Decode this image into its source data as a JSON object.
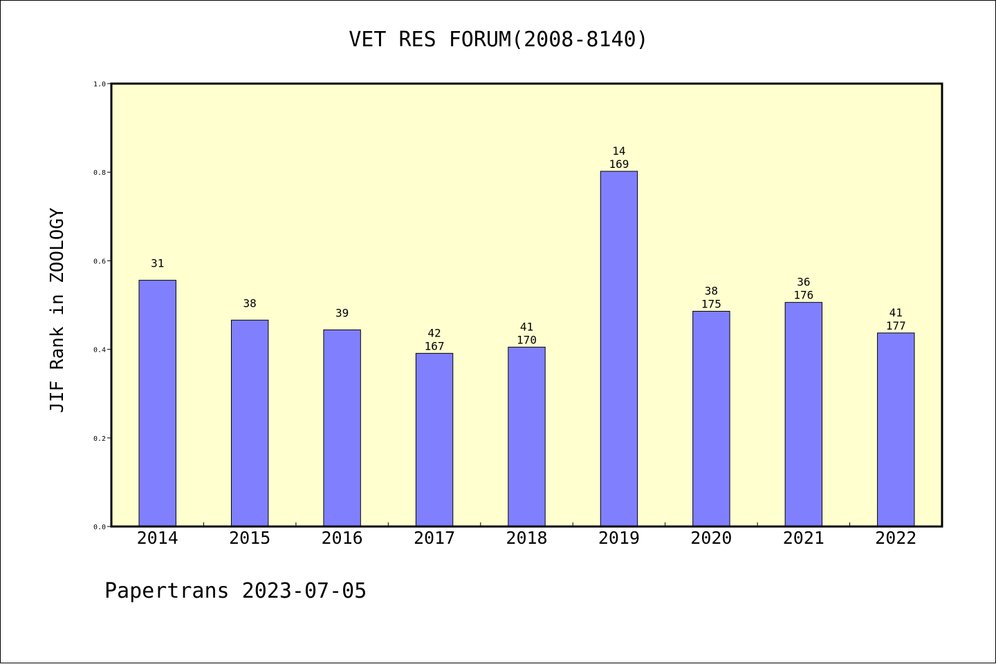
{
  "chart_data": {
    "type": "bar",
    "title": "VET RES FORUM(2008-8140)",
    "xlabel": "",
    "ylabel": "JIF Rank in ZOOLOGY",
    "ylim": [
      0,
      1.0
    ],
    "yticks": [
      "0.0",
      "0.2",
      "0.4",
      "0.6",
      "0.8",
      "1.0"
    ],
    "grid": false,
    "categories": [
      "2014",
      "2015",
      "2016",
      "2017",
      "2018",
      "2019",
      "2020",
      "2021",
      "2022"
    ],
    "values": [
      0.556,
      0.466,
      0.444,
      0.391,
      0.405,
      0.802,
      0.486,
      0.506,
      0.437
    ],
    "label_top": [
      "31",
      "38",
      "39",
      "42",
      "41",
      "14",
      "38",
      "36",
      "41"
    ],
    "label_bottom": [
      "",
      "",
      "",
      "167",
      "170",
      "169",
      "175",
      "176",
      "177"
    ],
    "colors": {
      "plot_bg": "#ffffd0",
      "bar": "#8080ff"
    }
  },
  "footer": {
    "text": "Papertrans 2023-07-05"
  }
}
